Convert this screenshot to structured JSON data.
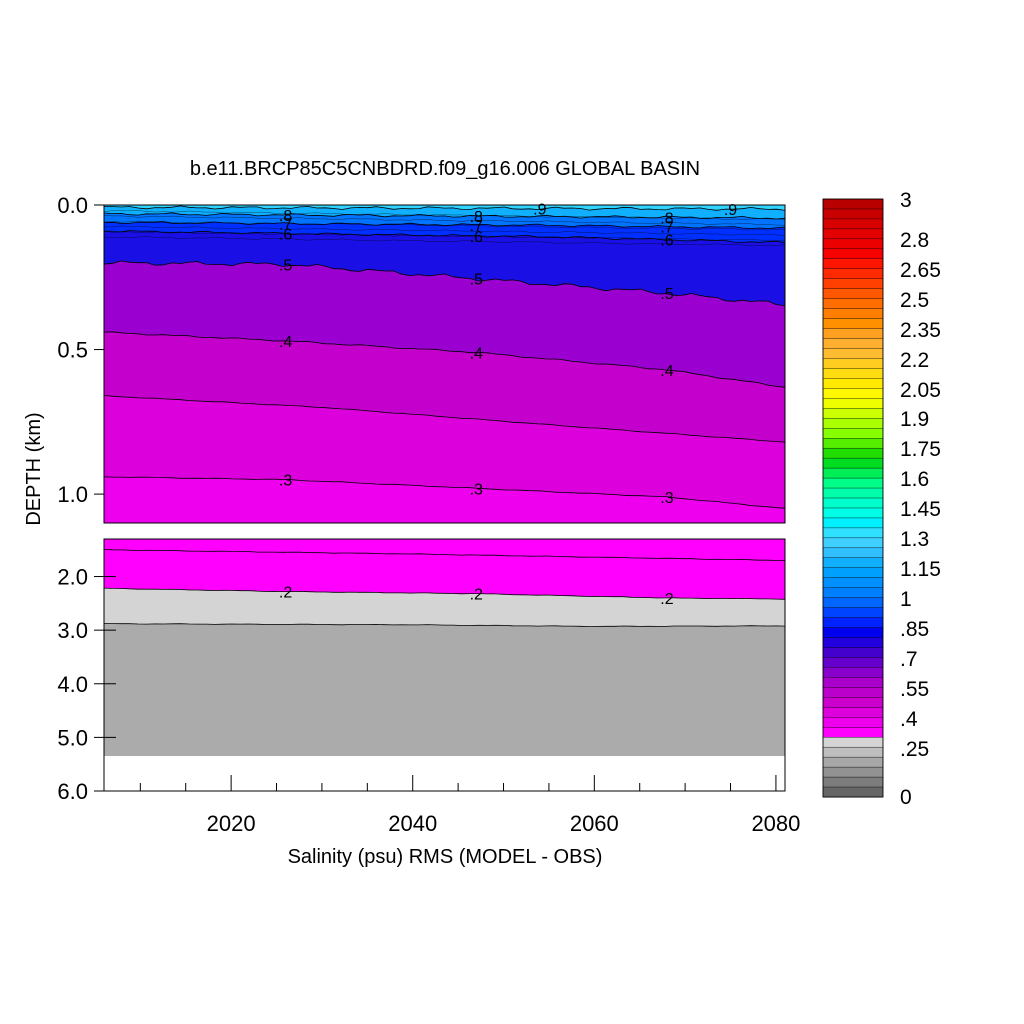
{
  "chart_data": {
    "type": "contour",
    "title": "b.e11.BRCP85C5CNBDRD.f09_g16.006 GLOBAL BASIN",
    "xlabel": "Salinity (psu) RMS (MODEL - OBS)",
    "ylabel": "DEPTH (km)",
    "xlim": [
      2006,
      2081
    ],
    "x_ticks": [
      "2020",
      "2040",
      "2060",
      "2080"
    ],
    "x_tick_values": [
      2020,
      2040,
      2060,
      2080
    ],
    "upper_panel": {
      "ylim": [
        0.0,
        1.1
      ],
      "y_ticks": [
        "0.0",
        "0.5",
        "1.0"
      ],
      "y_tick_values": [
        0.0,
        0.5,
        1.0
      ]
    },
    "lower_panel": {
      "ylim": [
        1.3,
        6.0
      ],
      "y_ticks": [
        "2.0",
        "3.0",
        "4.0",
        "5.0",
        "6.0"
      ],
      "y_tick_values": [
        2.0,
        3.0,
        4.0,
        5.0,
        6.0
      ],
      "bottom_of_data_depth": 5.35
    },
    "contours": [
      {
        "level": 0.9,
        "label": ".9",
        "points": [
          [
            2006,
            0.008
          ],
          [
            2030,
            0.01
          ],
          [
            2055,
            0.012
          ],
          [
            2081,
            0.014
          ]
        ]
      },
      {
        "level": 0.8,
        "label": ".8",
        "points": [
          [
            2006,
            0.03
          ],
          [
            2030,
            0.035
          ],
          [
            2055,
            0.04
          ],
          [
            2081,
            0.045
          ]
        ]
      },
      {
        "level": 0.7,
        "label": ".7",
        "points": [
          [
            2006,
            0.06
          ],
          [
            2030,
            0.065
          ],
          [
            2055,
            0.07
          ],
          [
            2081,
            0.08
          ]
        ]
      },
      {
        "level": 0.6,
        "label": ".6",
        "points": [
          [
            2006,
            0.09
          ],
          [
            2030,
            0.1
          ],
          [
            2055,
            0.11
          ],
          [
            2081,
            0.13
          ]
        ]
      },
      {
        "level": 0.5,
        "label": ".5",
        "points": [
          [
            2006,
            0.2
          ],
          [
            2026,
            0.205
          ],
          [
            2047,
            0.255
          ],
          [
            2068,
            0.305
          ],
          [
            2081,
            0.345
          ]
        ]
      },
      {
        "level": 0.4,
        "label": ".4",
        "points": [
          [
            2006,
            0.44
          ],
          [
            2026,
            0.47
          ],
          [
            2047,
            0.51
          ],
          [
            2068,
            0.57
          ],
          [
            2081,
            0.63
          ]
        ]
      },
      {
        "level": 0.35,
        "label": "",
        "points": [
          [
            2006,
            0.66
          ],
          [
            2030,
            0.7
          ],
          [
            2055,
            0.76
          ],
          [
            2081,
            0.82
          ]
        ]
      },
      {
        "level": 0.3,
        "label": ".3",
        "points": [
          [
            2006,
            0.94
          ],
          [
            2026,
            0.95
          ],
          [
            2047,
            0.98
          ],
          [
            2068,
            1.01
          ],
          [
            2081,
            1.05
          ]
        ]
      },
      {
        "level": 0.25,
        "label": "",
        "points": [
          [
            2006,
            1.5
          ],
          [
            2040,
            1.58
          ],
          [
            2081,
            1.7
          ]
        ]
      },
      {
        "level": 0.2,
        "label": ".2",
        "points": [
          [
            2006,
            2.22
          ],
          [
            2026,
            2.28
          ],
          [
            2047,
            2.32
          ],
          [
            2068,
            2.4
          ],
          [
            2081,
            2.42
          ]
        ]
      },
      {
        "level": 0.15,
        "label": "",
        "points": [
          [
            2006,
            2.88
          ],
          [
            2040,
            2.9
          ],
          [
            2060,
            2.93
          ],
          [
            2081,
            2.92
          ]
        ]
      }
    ],
    "colorbar": {
      "range": [
        0,
        3
      ],
      "labels": [
        "3",
        "2.8",
        "2.65",
        "2.5",
        "2.35",
        "2.2",
        "2.05",
        "1.9",
        "1.75",
        "1.6",
        "1.45",
        "1.3",
        "1.15",
        "1",
        ".85",
        ".7",
        ".55",
        ".4",
        ".25",
        "0"
      ],
      "label_values": [
        3,
        2.8,
        2.65,
        2.5,
        2.35,
        2.2,
        2.05,
        1.9,
        1.75,
        1.6,
        1.45,
        1.3,
        1.15,
        1,
        0.85,
        0.7,
        0.55,
        0.4,
        0.25,
        0
      ],
      "colors_top_to_bottom": [
        "#b80000",
        "#c80000",
        "#d60000",
        "#e20000",
        "#ec0000",
        "#f60000",
        "#ff1400",
        "#ff2a00",
        "#ff4000",
        "#ff5800",
        "#ff6c00",
        "#ff7e00",
        "#ff9000",
        "#ffa020",
        "#ffae30",
        "#ffbc30",
        "#ffcc20",
        "#ffdc10",
        "#ffea00",
        "#fff800",
        "#eeff00",
        "#ccff00",
        "#aaff00",
        "#88ff00",
        "#55ee00",
        "#22dd00",
        "#00dd20",
        "#00ee55",
        "#00ff88",
        "#00ffaa",
        "#00ffcc",
        "#00ffe6",
        "#00f0ff",
        "#30e0ff",
        "#40d0ff",
        "#30c0ff",
        "#10b0ff",
        "#00a0ff",
        "#0090ff",
        "#0080ff",
        "#0066ff",
        "#0044ff",
        "#0022ff",
        "#0000ee",
        "#2200dd",
        "#4400cc",
        "#6600cc",
        "#8800cc",
        "#aa00cc",
        "#bb00cc",
        "#cc00cc",
        "#dd00dd",
        "#ee00ee",
        "#ff00ff",
        "#d4d4d4",
        "#bebebe",
        "#a8a8a8",
        "#929292",
        "#7c7c7c",
        "#666666"
      ]
    },
    "fill_colors": {
      "level_0_9_plus": "#30d4ff",
      "level_0_8": "#10b0ff",
      "level_0_7": "#0074ff",
      "level_0_6": "#0030ff",
      "level_0_55": "#1a10e6",
      "level_0_5": "#5a00d6",
      "level_0_45": "#9a00d0",
      "level_0_4": "#c400cc",
      "level_0_35": "#dc00dc",
      "level_0_3": "#ee00ee",
      "level_0_25": "#ff00ff",
      "level_0_2": "#d4d4d4",
      "level_0_15": "#ababab",
      "no_data": "#ffffff"
    }
  }
}
